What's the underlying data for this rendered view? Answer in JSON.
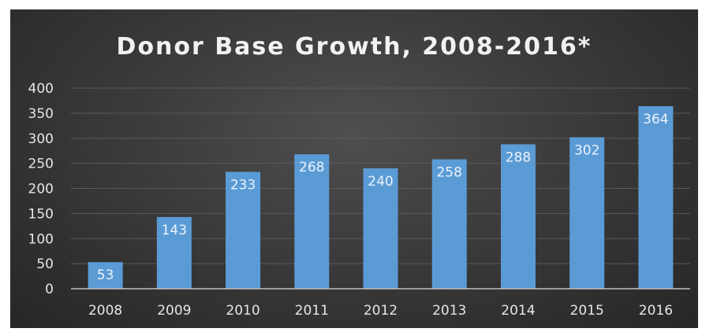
{
  "chart_data": {
    "type": "bar",
    "title": "Donor Base Growth, 2008-2016*",
    "xlabel": "",
    "ylabel": "",
    "categories": [
      "2008",
      "2009",
      "2010",
      "2011",
      "2012",
      "2013",
      "2014",
      "2015",
      "2016"
    ],
    "values": [
      53,
      143,
      233,
      268,
      240,
      258,
      288,
      302,
      364
    ],
    "data_labels": [
      "53",
      "143",
      "233",
      "268",
      "240",
      "258",
      "288",
      "302",
      "364"
    ],
    "ylim": [
      0,
      400
    ],
    "yticks": [
      0,
      50,
      100,
      150,
      200,
      250,
      300,
      350,
      400
    ],
    "ytick_labels": [
      "0",
      "50",
      "100",
      "150",
      "200",
      "250",
      "300",
      "350",
      "400"
    ],
    "grid": true,
    "legend": "none"
  },
  "colors": {
    "bar": "#5b9bd5",
    "background": "#3b3b3b",
    "gridline": "#5a5a5a",
    "axis": "#bfbfbf",
    "text": "#e6e6e6"
  }
}
